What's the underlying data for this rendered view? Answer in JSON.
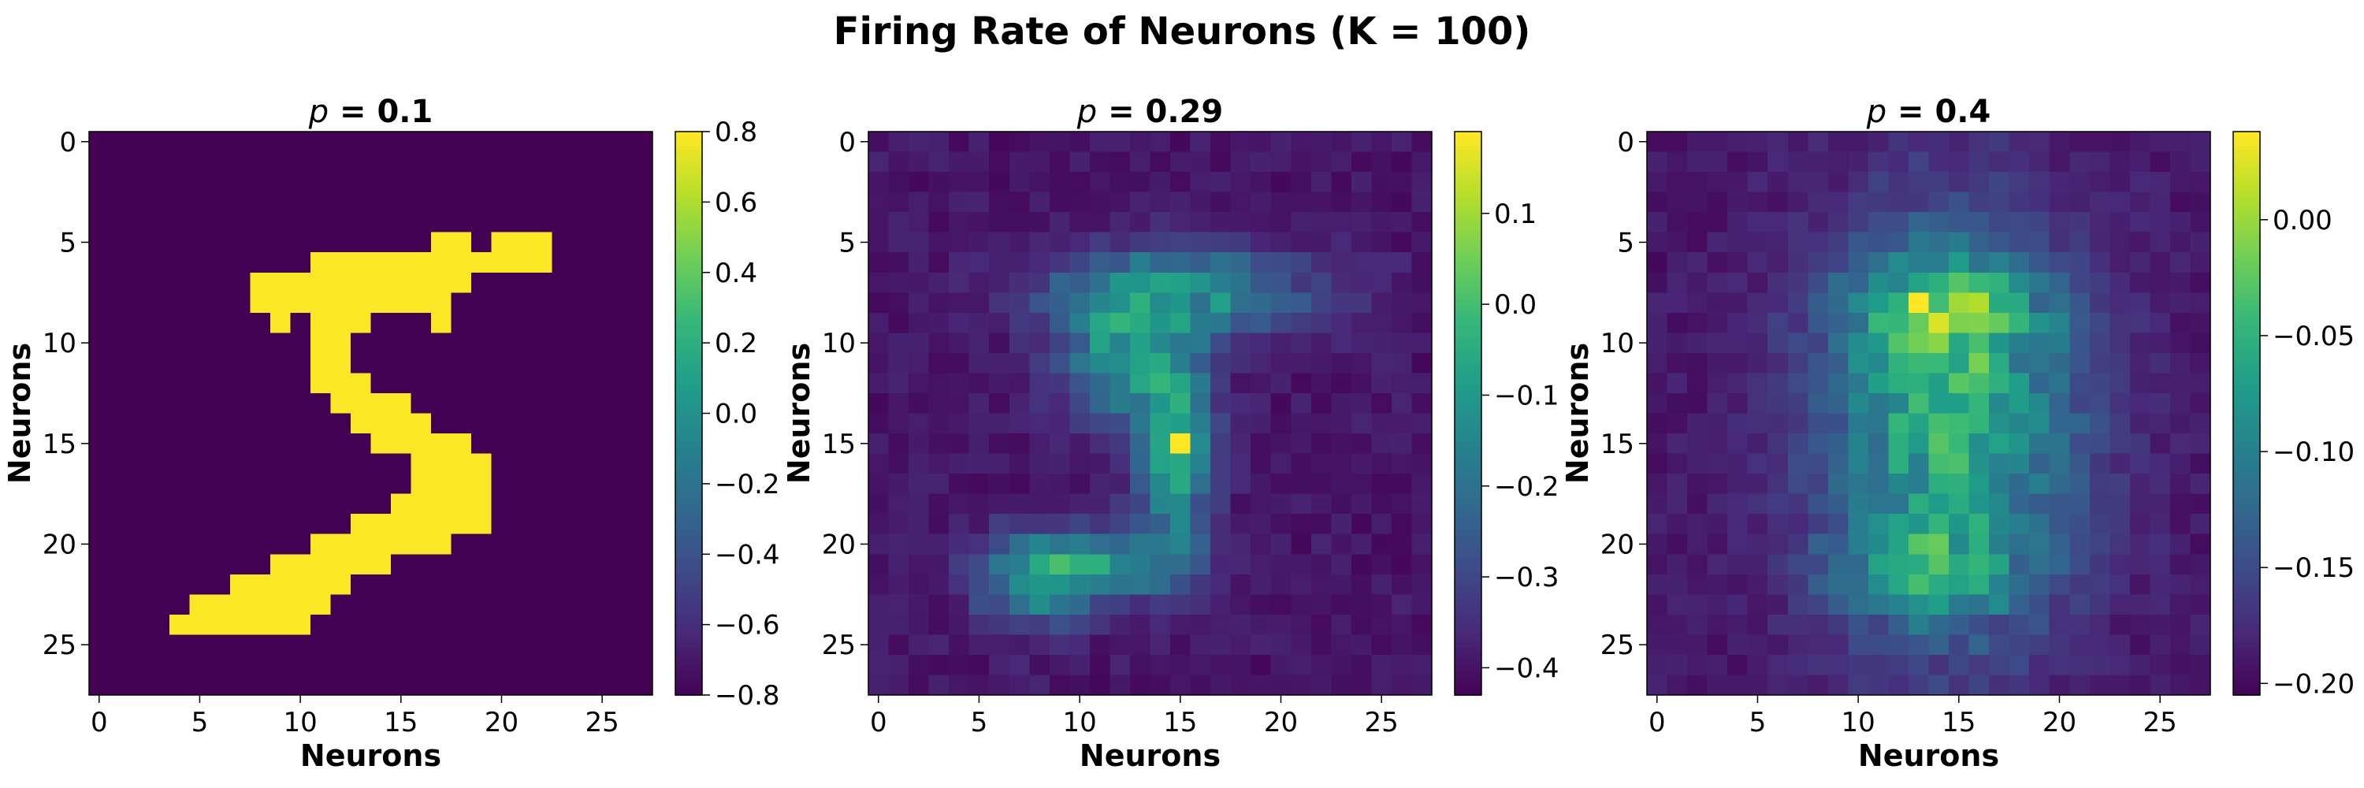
{
  "chart_data": {
    "type": "heatmap",
    "title": "Firing Rate of Neurons (K = 100)",
    "grid": false,
    "colormap": "viridis",
    "colors": {
      "viridis": [
        "#440154",
        "#482878",
        "#3e4989",
        "#31688e",
        "#26828e",
        "#1f9e89",
        "#35b779",
        "#6ece58",
        "#b5de2b",
        "#fde725"
      ]
    },
    "panels": [
      {
        "title_prefix": "p",
        "title_value": " = 0.1",
        "xlabel": "Neurons",
        "ylabel": "Neurons",
        "grid_size": [
          28,
          28
        ],
        "x_ticks": [
          "0",
          "5",
          "10",
          "15",
          "20",
          "25"
        ],
        "y_ticks": [
          "0",
          "5",
          "10",
          "15",
          "20",
          "25"
        ],
        "colorbar": {
          "range": [
            -0.8,
            0.8
          ],
          "ticks": [
            "0.8",
            "0.6",
            "0.4",
            "0.2",
            "0.0",
            "−0.2",
            "−0.4",
            "−0.6",
            "−0.8"
          ]
        },
        "bright_rows": [
          {
            "row": 5,
            "segments": [
              [
                17,
                18
              ],
              [
                20,
                22
              ]
            ]
          },
          {
            "row": 6,
            "segments": [
              [
                11,
                22
              ]
            ]
          },
          {
            "row": 7,
            "segments": [
              [
                8,
                18
              ]
            ]
          },
          {
            "row": 8,
            "segments": [
              [
                8,
                17
              ]
            ]
          },
          {
            "row": 9,
            "segments": [
              [
                9,
                9
              ],
              [
                11,
                13
              ],
              [
                17,
                17
              ]
            ]
          },
          {
            "row": 10,
            "segments": [
              [
                11,
                12
              ]
            ]
          },
          {
            "row": 11,
            "segments": [
              [
                11,
                12
              ]
            ]
          },
          {
            "row": 12,
            "segments": [
              [
                11,
                13
              ]
            ]
          },
          {
            "row": 13,
            "segments": [
              [
                12,
                15
              ]
            ]
          },
          {
            "row": 14,
            "segments": [
              [
                13,
                16
              ]
            ]
          },
          {
            "row": 15,
            "segments": [
              [
                14,
                18
              ]
            ]
          },
          {
            "row": 16,
            "segments": [
              [
                16,
                19
              ]
            ]
          },
          {
            "row": 17,
            "segments": [
              [
                16,
                19
              ]
            ]
          },
          {
            "row": 18,
            "segments": [
              [
                15,
                19
              ]
            ]
          },
          {
            "row": 19,
            "segments": [
              [
                13,
                19
              ]
            ]
          },
          {
            "row": 20,
            "segments": [
              [
                11,
                17
              ]
            ]
          },
          {
            "row": 21,
            "segments": [
              [
                9,
                14
              ]
            ]
          },
          {
            "row": 22,
            "segments": [
              [
                7,
                12
              ]
            ]
          },
          {
            "row": 23,
            "segments": [
              [
                5,
                11
              ]
            ]
          },
          {
            "row": 24,
            "segments": [
              [
                4,
                10
              ]
            ]
          }
        ]
      },
      {
        "title_prefix": "p",
        "title_value": " = 0.29",
        "xlabel": "Neurons",
        "ylabel": "Neurons",
        "grid_size": [
          28,
          28
        ],
        "x_ticks": [
          "0",
          "5",
          "10",
          "15",
          "20",
          "25"
        ],
        "y_ticks": [
          "0",
          "5",
          "10",
          "15",
          "20",
          "25"
        ],
        "colorbar": {
          "range": [
            -0.43,
            0.19
          ],
          "ticks": [
            "0.1",
            "0.0",
            "−0.1",
            "−0.2",
            "−0.3",
            "−0.4"
          ],
          "tick_values": [
            0.1,
            0.0,
            -0.1,
            -0.2,
            -0.3,
            -0.4
          ]
        },
        "activity_blobs": [
          {
            "center": [
              15.0,
              7.5
            ],
            "sigma": [
              4.5,
              1.6
            ],
            "amplitude": 0.42
          },
          {
            "center": [
              12.0,
              11.0
            ],
            "sigma": [
              2.2,
              2.2
            ],
            "amplitude": 0.38
          },
          {
            "center": [
              14.8,
              15.0
            ],
            "sigma": [
              1.3,
              3.2
            ],
            "amplitude": 0.55
          },
          {
            "center": [
              11.0,
              21.0
            ],
            "sigma": [
              3.0,
              1.3
            ],
            "amplitude": 0.45
          },
          {
            "center": [
              7.5,
              22.0
            ],
            "sigma": [
              2.0,
              1.6
            ],
            "amplitude": 0.3
          }
        ],
        "peak_cell": [
          15,
          15
        ]
      },
      {
        "title_prefix": "p",
        "title_value": " = 0.4",
        "xlabel": "Neurons",
        "ylabel": "Neurons",
        "grid_size": [
          28,
          28
        ],
        "x_ticks": [
          "0",
          "5",
          "10",
          "15",
          "20",
          "25"
        ],
        "y_ticks": [
          "0",
          "5",
          "10",
          "15",
          "20",
          "25"
        ],
        "colorbar": {
          "range": [
            -0.205,
            0.038
          ],
          "ticks": [
            "0.00",
            "−0.05",
            "−0.10",
            "−0.15",
            "−0.20"
          ],
          "tick_values": [
            0.0,
            -0.05,
            -0.1,
            -0.15,
            -0.2
          ]
        },
        "activity_blobs": [
          {
            "center": [
              14.5,
              14.5
            ],
            "sigma": [
              4.6,
              7.2
            ],
            "amplitude": 0.55
          },
          {
            "center": [
              14.5,
              8.5
            ],
            "sigma": [
              3.5,
              1.8
            ],
            "amplitude": 0.35
          },
          {
            "center": [
              13.5,
              21.5
            ],
            "sigma": [
              3.0,
              1.4
            ],
            "amplitude": 0.3
          }
        ],
        "peak_cell": [
          13,
          8
        ]
      }
    ]
  }
}
